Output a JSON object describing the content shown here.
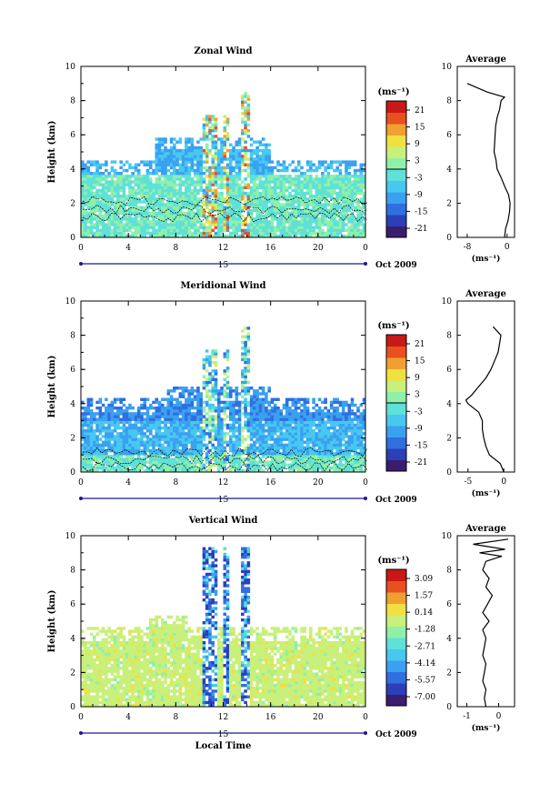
{
  "colors": {
    "scale": [
      "#3b1d6e",
      "#2b3fb8",
      "#2f6fe0",
      "#3aa0f0",
      "#47c8f0",
      "#5fe0d8",
      "#8ff0a8",
      "#c8f07a",
      "#f0e040",
      "#f0a030",
      "#e85020",
      "#c81818"
    ]
  },
  "chart_data": [
    {
      "type": "heatmap",
      "title": "Zonal Wind",
      "ylabel": "Height (km)",
      "xlabel": "",
      "x_ticks": [
        "0",
        "4",
        "8",
        "12",
        "16",
        "20",
        "0"
      ],
      "y_ticks": [
        "0",
        "2",
        "4",
        "6",
        "8",
        "10"
      ],
      "xlim": [
        0,
        24
      ],
      "ylim": [
        0,
        10
      ],
      "date_mid": "15",
      "date_right": "Oct 2009",
      "colorbar_unit": "(ms⁻¹)",
      "colorbar_ticks": [
        "21",
        "15",
        "9",
        "3",
        "-3",
        "-9",
        "-15",
        "-21"
      ],
      "average": {
        "title": "Average",
        "xlabel": "(ms⁻¹)",
        "x_ticks": [
          "-8",
          "0"
        ],
        "xlim": [
          -10,
          1.5
        ],
        "y_ticks": [
          "0",
          "2",
          "4",
          "6",
          "8",
          "10"
        ],
        "profile_heights": [
          0,
          0.5,
          1,
          1.5,
          2,
          2.5,
          3,
          3.5,
          4,
          4.5,
          5,
          5.5,
          6,
          6.5,
          7,
          7.5,
          8,
          8.2,
          8.5,
          9
        ],
        "profile_values": [
          -0.5,
          -0.3,
          0.2,
          0.5,
          0.6,
          0.3,
          -0.5,
          -1.2,
          -2,
          -2.2,
          -2.6,
          -2.5,
          -2.4,
          -2.3,
          -2,
          -1.5,
          -1.2,
          -0.5,
          -4,
          -8
        ]
      }
    },
    {
      "type": "heatmap",
      "title": "Meridional Wind",
      "ylabel": "Height (km)",
      "xlabel": "",
      "x_ticks": [
        "0",
        "4",
        "8",
        "12",
        "16",
        "20",
        "0"
      ],
      "y_ticks": [
        "0",
        "2",
        "4",
        "6",
        "8",
        "10"
      ],
      "xlim": [
        0,
        24
      ],
      "ylim": [
        0,
        10
      ],
      "date_mid": "15",
      "date_right": "Oct 2009",
      "colorbar_unit": "(ms⁻¹)",
      "colorbar_ticks": [
        "21",
        "15",
        "9",
        "3",
        "-3",
        "-9",
        "-15",
        "-21"
      ],
      "average": {
        "title": "Average",
        "xlabel": "(ms⁻¹)",
        "x_ticks": [
          "-5",
          "0"
        ],
        "xlim": [
          -6.5,
          1.5
        ],
        "y_ticks": [
          "0",
          "2",
          "4",
          "6",
          "8",
          "10"
        ],
        "profile_heights": [
          0,
          0.5,
          1,
          1.5,
          2,
          2.5,
          3,
          3.5,
          4,
          4.2,
          4.5,
          5,
          5.5,
          6,
          6.5,
          7,
          7.5,
          8,
          8.5
        ],
        "profile_values": [
          0,
          -0.5,
          -2,
          -2.5,
          -2.8,
          -3,
          -3,
          -3.5,
          -5,
          -5.3,
          -4.5,
          -3.5,
          -2.5,
          -1.8,
          -1.3,
          -0.8,
          -0.6,
          -0.4,
          -1.5
        ]
      }
    },
    {
      "type": "heatmap",
      "title": "Vertical Wind",
      "ylabel": "Height (km)",
      "xlabel": "Local Time",
      "x_ticks": [
        "0",
        "4",
        "8",
        "12",
        "16",
        "20",
        "0"
      ],
      "y_ticks": [
        "0",
        "2",
        "4",
        "6",
        "8",
        "10"
      ],
      "xlim": [
        0,
        24
      ],
      "ylim": [
        0,
        10
      ],
      "date_mid": "15",
      "date_right": "Oct 2009",
      "colorbar_unit": "(ms⁻¹)",
      "colorbar_ticks": [
        "3.09",
        "1.57",
        "0.14",
        "-1.28",
        "-2.71",
        "-4.14",
        "-5.57",
        "-7.00"
      ],
      "average": {
        "title": "Average",
        "xlabel": "(ms⁻¹)",
        "x_ticks": [
          "-1",
          "0"
        ],
        "xlim": [
          -1.3,
          0.5
        ],
        "y_ticks": [
          "0",
          "2",
          "4",
          "6",
          "8",
          "10"
        ],
        "profile_heights": [
          0,
          0.5,
          1,
          1.5,
          2,
          2.5,
          3,
          3.5,
          4,
          4.5,
          5,
          5.5,
          6,
          6.5,
          7,
          7.5,
          8,
          8.5,
          8.8,
          9,
          9.2,
          9.5,
          9.8
        ],
        "profile_values": [
          -0.4,
          -0.45,
          -0.4,
          -0.5,
          -0.45,
          -0.4,
          -0.5,
          -0.45,
          -0.4,
          -0.5,
          -0.3,
          -0.5,
          -0.35,
          -0.2,
          -0.4,
          -0.3,
          -0.5,
          -0.4,
          0.1,
          -0.6,
          0.2,
          -0.8,
          0.3
        ]
      }
    }
  ]
}
